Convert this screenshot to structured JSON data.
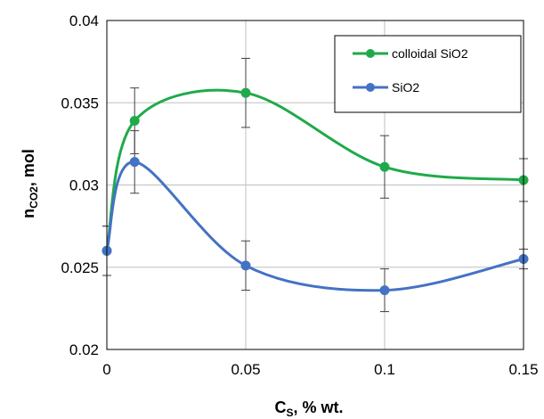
{
  "chart_data": {
    "type": "line",
    "xlabel": {
      "main": "C",
      "sub": "S",
      "rest": ", % wt."
    },
    "ylabel": {
      "main": "n",
      "sub": "CO2",
      "rest": ", mol"
    },
    "xlim": [
      0,
      0.15
    ],
    "ylim": [
      0.02,
      0.04
    ],
    "x_ticks": [
      "0",
      "0.05",
      "0.1",
      "0.15"
    ],
    "y_ticks": [
      "0.02",
      "0.025",
      "0.03",
      "0.035",
      "0.04"
    ],
    "grid": true,
    "smooth": true,
    "legend_position": "top-right",
    "series": [
      {
        "name": "colloidal SiO2",
        "color": "#1faa4a",
        "points": [
          {
            "x": 0,
            "y": 0.026,
            "err": 0.0015
          },
          {
            "x": 0.01,
            "y": 0.0339,
            "err": 0.002
          },
          {
            "x": 0.05,
            "y": 0.0356,
            "err": 0.0021
          },
          {
            "x": 0.1,
            "y": 0.0311,
            "err": 0.0019
          },
          {
            "x": 0.15,
            "y": 0.0303,
            "err": 0.0013
          }
        ]
      },
      {
        "name": "SiO2",
        "color": "#4472c4",
        "points": [
          {
            "x": 0,
            "y": 0.026,
            "err": 0.0015
          },
          {
            "x": 0.01,
            "y": 0.0314,
            "err": 0.0019
          },
          {
            "x": 0.05,
            "y": 0.0251,
            "err": 0.0015
          },
          {
            "x": 0.1,
            "y": 0.0236,
            "err": 0.0013
          },
          {
            "x": 0.15,
            "y": 0.0255,
            "err": 0.0006
          }
        ]
      }
    ]
  }
}
